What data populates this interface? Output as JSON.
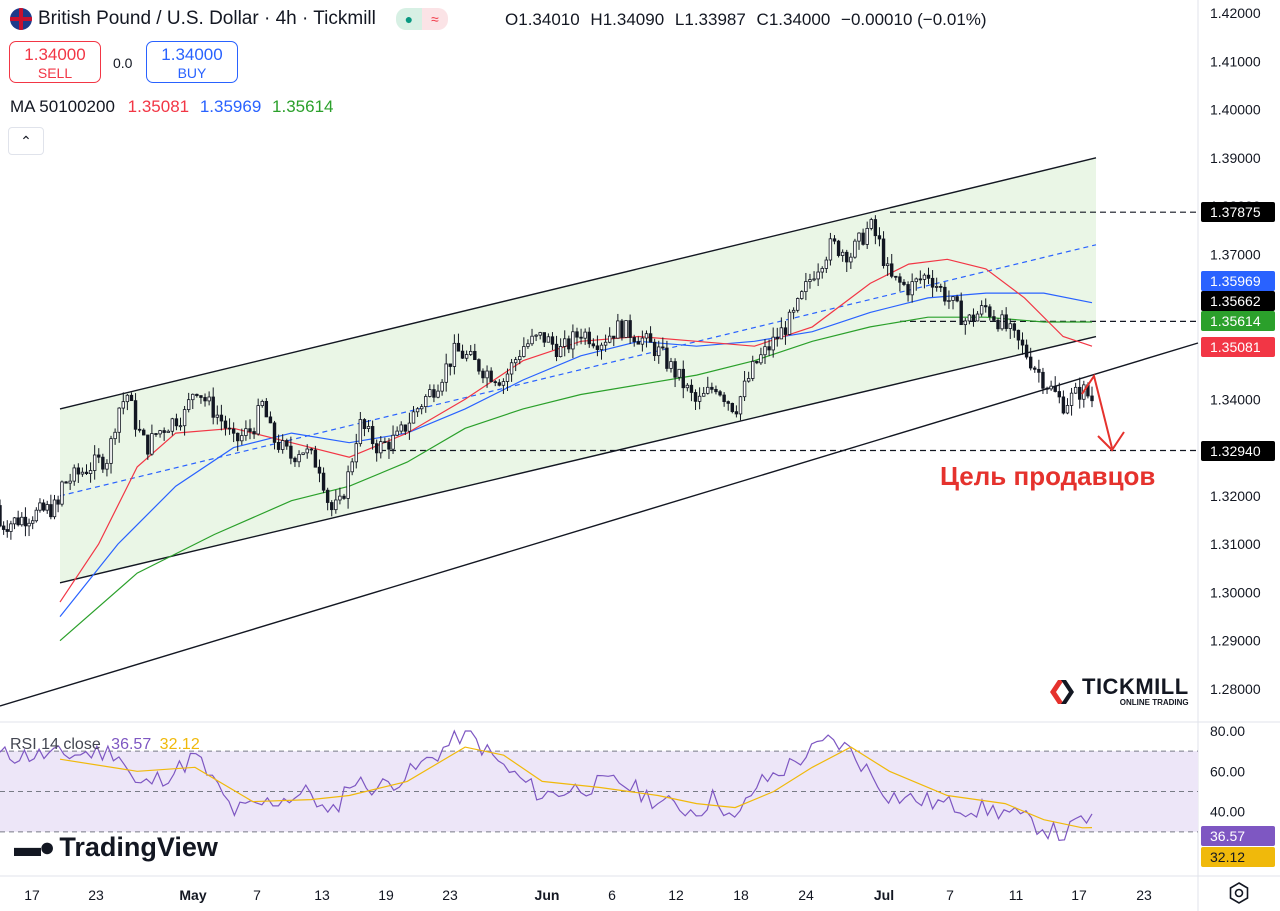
{
  "header": {
    "symbol_title": "British Pound / U.S. Dollar · 4h · Tickmill",
    "indicator_glyph": "≈",
    "ohlc": [
      {
        "key": "O",
        "value": "1.34010"
      },
      {
        "key": "H",
        "value": "1.34090"
      },
      {
        "key": "L",
        "value": "1.33987"
      },
      {
        "key": "C",
        "value": "1.34000"
      }
    ],
    "change": "−0.00010 (−0.01%)"
  },
  "trade": {
    "sell_price": "1.34000",
    "sell_label": "SELL",
    "spread": "0.0",
    "buy_price": "1.34000",
    "buy_label": "BUY"
  },
  "ma_legend": {
    "label": "MA 50100200",
    "values": [
      "1.35081",
      "1.35969",
      "1.35614"
    ],
    "colors": [
      "#f23645",
      "#2962ff",
      "#2ba02b"
    ]
  },
  "collapse_glyph": "⌃",
  "rsi_legend": {
    "label": "RSI 14 close",
    "rsi": "36.57",
    "ma": "32.12",
    "colors": [
      "#7e57c2",
      "#f0b90b"
    ]
  },
  "watermarks": {
    "tradingview": "TradingView",
    "tickmill": "TICKMILL",
    "tickmill_sub": "ONLINE TRADING"
  },
  "annotation": {
    "text": "Цель продавцов",
    "color": "#e5322d"
  },
  "colors": {
    "up": "#089981",
    "down": "#f23645",
    "candle": "#131722",
    "channel_fill": "#eaf6e6",
    "rsi_band": "#ede6f8"
  },
  "chart_data": {
    "type": "candlestick",
    "symbol": "GBPUSD",
    "timeframe": "4h",
    "ylim": [
      1.275,
      1.4225
    ],
    "y_ticks": [
      "1.42000",
      "1.41000",
      "1.40000",
      "1.39000",
      "1.38000",
      "1.37000",
      "1.36000",
      "1.35000",
      "1.34000",
      "1.33000",
      "1.32000",
      "1.31000",
      "1.30000",
      "1.29000",
      "1.28000"
    ],
    "x_ticks": [
      "17",
      "23",
      "May",
      "7",
      "13",
      "19",
      "23",
      "Jun",
      "6",
      "12",
      "18",
      "24",
      "Jul",
      "7",
      "11",
      "17",
      "23"
    ],
    "x_tick_index": [
      0,
      1,
      2,
      3,
      4,
      5,
      6,
      7,
      8,
      9,
      10,
      11,
      12,
      13,
      14,
      15,
      16
    ],
    "price_path": [
      [
        0,
        1.322
      ],
      [
        3,
        1.326
      ],
      [
        5,
        1.328
      ],
      [
        6,
        1.338
      ],
      [
        7,
        1.341
      ],
      [
        8,
        1.334
      ],
      [
        9,
        1.33
      ],
      [
        10,
        1.333
      ],
      [
        12,
        1.336
      ],
      [
        13,
        1.337
      ],
      [
        14,
        1.343
      ],
      [
        15,
        1.34
      ],
      [
        17,
        1.335
      ],
      [
        18,
        1.331
      ],
      [
        20,
        1.334
      ],
      [
        21,
        1.339
      ],
      [
        22,
        1.332
      ],
      [
        24,
        1.328
      ],
      [
        25,
        1.33
      ],
      [
        27,
        1.326
      ],
      [
        28,
        1.317
      ],
      [
        29,
        1.318
      ],
      [
        30,
        1.325
      ],
      [
        31,
        1.335
      ],
      [
        33,
        1.33
      ],
      [
        35,
        1.332
      ],
      [
        37,
        1.338
      ],
      [
        39,
        1.343
      ],
      [
        41,
        1.35
      ],
      [
        42,
        1.349
      ],
      [
        44,
        1.346
      ],
      [
        46,
        1.344
      ],
      [
        48,
        1.351
      ],
      [
        50,
        1.353
      ],
      [
        52,
        1.35
      ],
      [
        54,
        1.354
      ],
      [
        56,
        1.352
      ],
      [
        58,
        1.355
      ],
      [
        60,
        1.353
      ],
      [
        62,
        1.35
      ],
      [
        64,
        1.345
      ],
      [
        66,
        1.339
      ],
      [
        68,
        1.343
      ],
      [
        70,
        1.338
      ],
      [
        72,
        1.347
      ],
      [
        74,
        1.352
      ],
      [
        76,
        1.357
      ],
      [
        78,
        1.366
      ],
      [
        80,
        1.372
      ],
      [
        82,
        1.37
      ],
      [
        84,
        1.376
      ],
      [
        85,
        1.372
      ],
      [
        86,
        1.365
      ],
      [
        88,
        1.363
      ],
      [
        90,
        1.366
      ],
      [
        92,
        1.361
      ],
      [
        94,
        1.356
      ],
      [
        96,
        1.359
      ],
      [
        98,
        1.355
      ],
      [
        100,
        1.35
      ],
      [
        102,
        1.344
      ],
      [
        104,
        1.339
      ],
      [
        106,
        1.342
      ],
      [
        107,
        1.34
      ]
    ],
    "ma50": [
      [
        0,
        1.298
      ],
      [
        4,
        1.31
      ],
      [
        8,
        1.326
      ],
      [
        12,
        1.333
      ],
      [
        18,
        1.334
      ],
      [
        24,
        1.331
      ],
      [
        30,
        1.328
      ],
      [
        36,
        1.333
      ],
      [
        42,
        1.34
      ],
      [
        48,
        1.348
      ],
      [
        54,
        1.352
      ],
      [
        60,
        1.353
      ],
      [
        66,
        1.352
      ],
      [
        72,
        1.351
      ],
      [
        78,
        1.355
      ],
      [
        84,
        1.364
      ],
      [
        88,
        1.368
      ],
      [
        92,
        1.369
      ],
      [
        96,
        1.367
      ],
      [
        100,
        1.361
      ],
      [
        104,
        1.353
      ],
      [
        107,
        1.351
      ]
    ],
    "ma100": [
      [
        0,
        1.295
      ],
      [
        6,
        1.31
      ],
      [
        12,
        1.322
      ],
      [
        18,
        1.33
      ],
      [
        24,
        1.333
      ],
      [
        30,
        1.331
      ],
      [
        36,
        1.333
      ],
      [
        42,
        1.338
      ],
      [
        48,
        1.344
      ],
      [
        54,
        1.349
      ],
      [
        60,
        1.352
      ],
      [
        66,
        1.351
      ],
      [
        72,
        1.352
      ],
      [
        78,
        1.354
      ],
      [
        84,
        1.358
      ],
      [
        90,
        1.361
      ],
      [
        96,
        1.362
      ],
      [
        102,
        1.362
      ],
      [
        107,
        1.36
      ]
    ],
    "ma200": [
      [
        0,
        1.29
      ],
      [
        8,
        1.304
      ],
      [
        16,
        1.312
      ],
      [
        24,
        1.319
      ],
      [
        30,
        1.322
      ],
      [
        36,
        1.327
      ],
      [
        42,
        1.334
      ],
      [
        48,
        1.338
      ],
      [
        54,
        1.341
      ],
      [
        60,
        1.343
      ],
      [
        66,
        1.345
      ],
      [
        72,
        1.348
      ],
      [
        78,
        1.352
      ],
      [
        84,
        1.355
      ],
      [
        90,
        1.357
      ],
      [
        96,
        1.357
      ],
      [
        102,
        1.356
      ],
      [
        107,
        1.356
      ]
    ],
    "ma_names": [
      "MA 50",
      "MA 100",
      "MA 200"
    ],
    "levels": [
      {
        "price": 1.37875,
        "label": "1.37875",
        "bg": "#000000",
        "fg": "#ffffff",
        "dashed": true
      },
      {
        "price": 1.35969,
        "label": "1.35969",
        "bg": "#2962ff",
        "fg": "#ffffff",
        "dashed": false
      },
      {
        "price": 1.35662,
        "label": "1.35662",
        "bg": "#000000",
        "fg": "#ffffff",
        "dashed": false
      },
      {
        "price": 1.35614,
        "label": "1.35614",
        "bg": "#2ba02b",
        "fg": "#ffffff",
        "dashed": true
      },
      {
        "price": 1.35081,
        "label": "1.35081",
        "bg": "#f23645",
        "fg": "#ffffff",
        "dashed": false
      },
      {
        "price": 1.3294,
        "label": "1.32940",
        "bg": "#000000",
        "fg": "#ffffff",
        "dashed": true
      }
    ],
    "channel": {
      "upper": [
        [
          0,
          1.338
        ],
        [
          107,
          1.39
        ]
      ],
      "lower": [
        [
          0,
          1.302
        ],
        [
          107,
          1.353
        ]
      ],
      "mid": [
        [
          0,
          1.32
        ],
        [
          107,
          1.372
        ]
      ],
      "support": [
        [
          -5,
          1.279
        ],
        [
          114,
          1.348
        ]
      ]
    },
    "rsi": {
      "ylim": [
        20,
        83
      ],
      "y_ticks": [
        "80.00",
        "60.00",
        "40.00"
      ],
      "band": [
        30,
        70
      ],
      "rsi_path": [
        [
          0,
          68
        ],
        [
          6,
          70
        ],
        [
          8,
          52
        ],
        [
          12,
          60
        ],
        [
          14,
          68
        ],
        [
          18,
          40
        ],
        [
          22,
          45
        ],
        [
          26,
          50
        ],
        [
          28,
          36
        ],
        [
          30,
          55
        ],
        [
          33,
          52
        ],
        [
          36,
          58
        ],
        [
          40,
          72
        ],
        [
          42,
          80
        ],
        [
          46,
          62
        ],
        [
          50,
          48
        ],
        [
          54,
          52
        ],
        [
          58,
          55
        ],
        [
          62,
          45
        ],
        [
          66,
          40
        ],
        [
          68,
          48
        ],
        [
          70,
          34
        ],
        [
          72,
          52
        ],
        [
          74,
          58
        ],
        [
          78,
          70
        ],
        [
          80,
          76
        ],
        [
          82,
          70
        ],
        [
          86,
          48
        ],
        [
          90,
          45
        ],
        [
          94,
          42
        ],
        [
          98,
          40
        ],
        [
          100,
          36
        ],
        [
          102,
          32
        ],
        [
          104,
          28
        ],
        [
          106,
          36
        ],
        [
          107,
          36.57
        ]
      ],
      "ma_path": [
        [
          0,
          66
        ],
        [
          8,
          60
        ],
        [
          14,
          62
        ],
        [
          20,
          45
        ],
        [
          26,
          46
        ],
        [
          30,
          48
        ],
        [
          36,
          55
        ],
        [
          42,
          72
        ],
        [
          46,
          68
        ],
        [
          50,
          55
        ],
        [
          56,
          52
        ],
        [
          62,
          48
        ],
        [
          66,
          44
        ],
        [
          70,
          42
        ],
        [
          74,
          50
        ],
        [
          78,
          62
        ],
        [
          82,
          72
        ],
        [
          86,
          60
        ],
        [
          92,
          48
        ],
        [
          98,
          44
        ],
        [
          102,
          36
        ],
        [
          106,
          32
        ],
        [
          107,
          32.12
        ]
      ],
      "current_rsi": "36.57",
      "current_ma": "32.12"
    }
  }
}
